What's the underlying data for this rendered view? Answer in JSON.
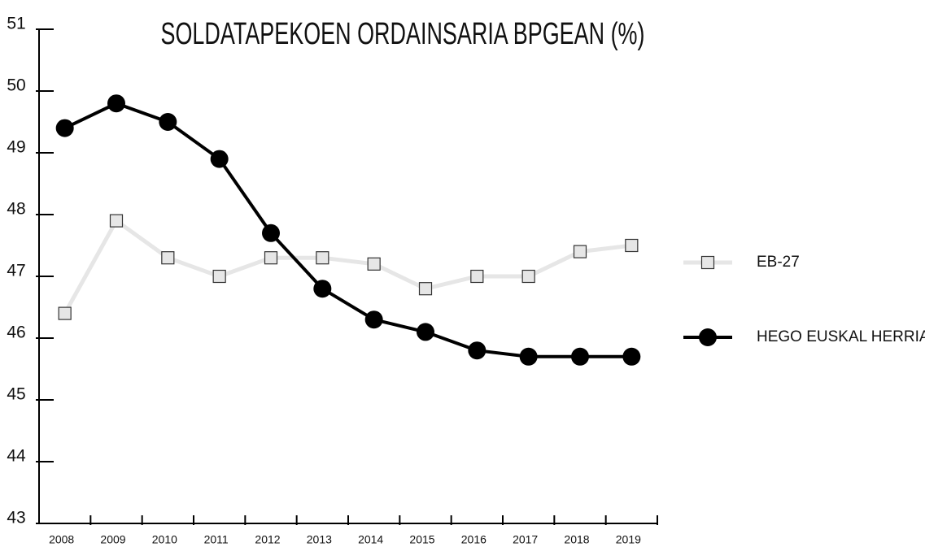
{
  "chart_data": {
    "type": "line",
    "title": "SOLDATAPEKOEN ORDAINSARIA BPGEAN (%)",
    "categories": [
      "2008",
      "2009",
      "2010",
      "2011",
      "2012",
      "2013",
      "2014",
      "2015",
      "2016",
      "2017",
      "2018",
      "2019"
    ],
    "series": [
      {
        "name": "EB-27",
        "color": "#e6e6e6",
        "marker": "square",
        "values": [
          46.4,
          47.9,
          47.3,
          47.0,
          47.3,
          47.3,
          47.2,
          46.8,
          47.0,
          47.0,
          47.4,
          47.5
        ]
      },
      {
        "name": "HEGO EUSKAL HERRIA",
        "color": "#000000",
        "marker": "circle",
        "values": [
          49.4,
          49.8,
          49.5,
          48.9,
          47.7,
          46.8,
          46.3,
          46.1,
          45.8,
          45.7,
          45.7,
          45.7
        ]
      }
    ],
    "ylim": [
      43,
      51
    ],
    "yticks": [
      43,
      44,
      45,
      46,
      47,
      48,
      49,
      50,
      51
    ],
    "legend": "right"
  }
}
